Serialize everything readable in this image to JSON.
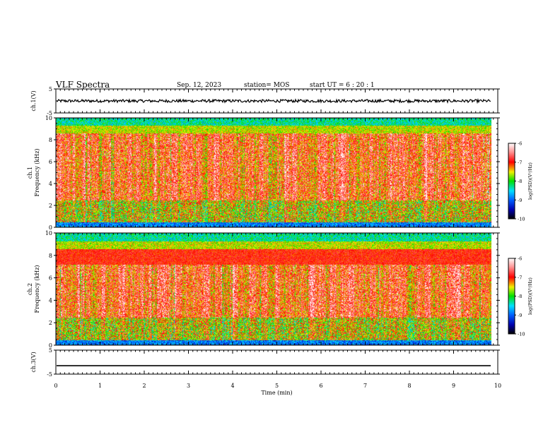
{
  "header": {
    "title": "VLF Spectra",
    "date": "Sep. 12, 2023",
    "station": "station= MOS",
    "start_ut": "start UT =  6 : 20 : 1"
  },
  "chart_data": [
    {
      "type": "line",
      "ylabel": "ch.1(V)",
      "yticks": [
        "5",
        "-5"
      ],
      "ylim": [
        -5,
        5
      ],
      "xlim": [
        0,
        10
      ],
      "level": 0.0,
      "trace": "noisy"
    },
    {
      "type": "heatmap",
      "ylabel": "ch.1\nFrequency (kHz)",
      "yticks": [
        "0",
        "2",
        "4",
        "6",
        "8",
        "10"
      ],
      "ylim": [
        0,
        10
      ],
      "xlim": [
        0,
        10
      ],
      "x_extent_max": 9.85,
      "colorbar": {
        "label": "log(PSD)(V²/Hz)",
        "ticks": [
          "-6",
          "-7",
          "-8",
          "-9",
          "-10"
        ],
        "range": [
          -10,
          -6
        ]
      }
    },
    {
      "type": "heatmap",
      "ylabel": "ch.2\nFrequency (kHz)",
      "yticks": [
        "0",
        "2",
        "4",
        "6",
        "8",
        "10"
      ],
      "ylim": [
        0,
        10
      ],
      "xlim": [
        0,
        10
      ],
      "x_extent_max": 9.85,
      "colorbar": {
        "label": "log(PSD)(V²/Hz)",
        "ticks": [
          "-6",
          "-7",
          "-8",
          "-9",
          "-10"
        ],
        "range": [
          -10,
          -6
        ]
      }
    },
    {
      "type": "line",
      "ylabel": "ch.3(V)",
      "yticks": [
        "5",
        "-5"
      ],
      "ylim": [
        -5,
        5
      ],
      "xlim": [
        0,
        10
      ],
      "level": -1.5,
      "trace": "flat"
    }
  ],
  "xaxis": {
    "label": "Time (min)",
    "ticks": [
      "0",
      "1",
      "2",
      "3",
      "4",
      "5",
      "6",
      "7",
      "8",
      "9",
      "10"
    ]
  }
}
